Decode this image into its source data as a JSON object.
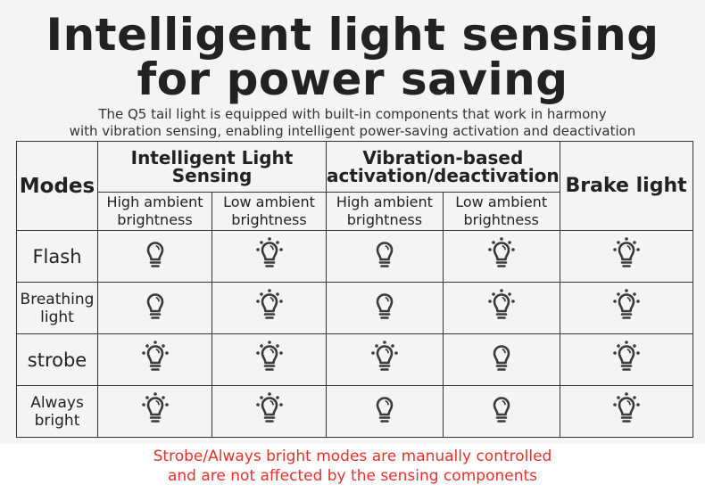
{
  "title": [
    "Intelligent light sensing",
    "for power saving"
  ],
  "subtitle": [
    "The Q5 tail light is equipped with built-in components that work in harmony",
    "with vibration sensing, enabling intelligent power-saving activation and deactivation"
  ],
  "table": {
    "modes_header": "Modes",
    "group1": "Intelligent Light Sensing",
    "group2": [
      "Vibration-based",
      "activation/deactivation"
    ],
    "brake": "Brake light",
    "high": [
      "High ambient",
      "brightness"
    ],
    "low": [
      "Low ambient",
      "brightness"
    ],
    "rows": [
      {
        "mode": [
          "Flash"
        ],
        "cells": [
          "bulb-off-icon",
          "bulb-on-icon",
          "bulb-off-icon",
          "bulb-on-icon",
          "bulb-on-icon"
        ]
      },
      {
        "mode": [
          "Breathing",
          "light"
        ],
        "cells": [
          "bulb-off-icon",
          "bulb-on-icon",
          "bulb-off-icon",
          "bulb-on-icon",
          "bulb-on-icon"
        ]
      },
      {
        "mode": [
          "strobe"
        ],
        "cells": [
          "bulb-on-icon",
          "bulb-on-icon",
          "bulb-on-icon",
          "bulb-off-icon",
          "bulb-on-icon"
        ]
      },
      {
        "mode": [
          "Always",
          "bright"
        ],
        "cells": [
          "bulb-on-icon",
          "bulb-on-icon",
          "bulb-off-icon",
          "bulb-off-icon",
          "bulb-on-icon"
        ]
      }
    ]
  },
  "note": [
    "Strobe/Always bright modes are manually controlled",
    "and are not affected by the sensing components"
  ],
  "colors": {
    "note": "#e8312a",
    "icon": "#3a3a3a"
  }
}
